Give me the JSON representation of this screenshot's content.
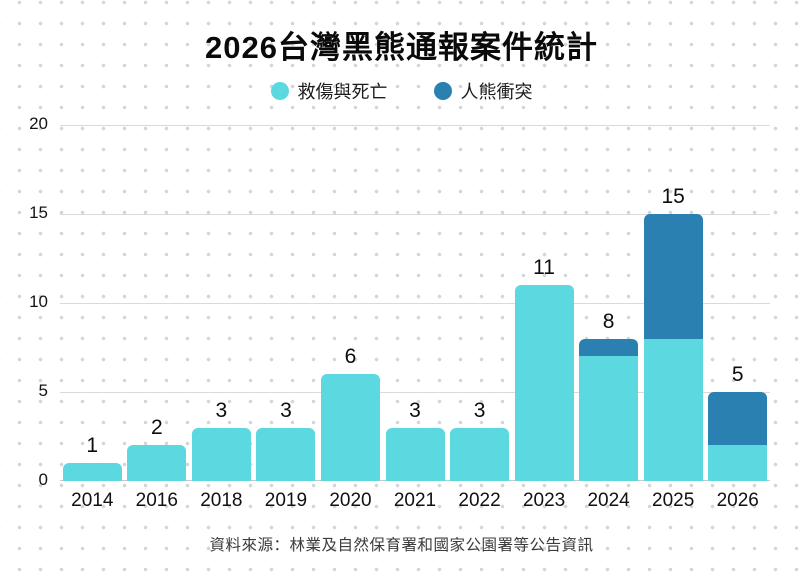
{
  "title": "2026台灣黑熊通報案件統計",
  "caption": "資料來源：林業及自然保育署和國家公園署等公告資訊",
  "legend": {
    "items": [
      {
        "label": "救傷與死亡",
        "color": "#5bd8e0"
      },
      {
        "label": "人熊衝突",
        "color": "#2b80b2"
      }
    ]
  },
  "colors": {
    "rescue_death": "#5bd8e0",
    "human_bear_conflict": "#2b80b2",
    "gridline": "#d9dadb",
    "baseline": "#c7c9cb",
    "dot_pattern": "#d4d6d8",
    "text": "#0a0a0a"
  },
  "chart_data": {
    "type": "bar",
    "stacked": true,
    "title": "2026台灣黑熊通報案件統計",
    "xlabel": "",
    "ylabel": "",
    "categories": [
      "2014",
      "2016",
      "2018",
      "2019",
      "2020",
      "2021",
      "2022",
      "2023",
      "2024",
      "2025",
      "2026"
    ],
    "series": [
      {
        "name": "救傷與死亡",
        "color": "#5bd8e0",
        "values": [
          1,
          2,
          3,
          3,
          6,
          3,
          3,
          11,
          7,
          8,
          2
        ]
      },
      {
        "name": "人熊衝突",
        "color": "#2b80b2",
        "values": [
          0,
          0,
          0,
          0,
          0,
          0,
          0,
          0,
          1,
          7,
          3
        ]
      }
    ],
    "totals": [
      1,
      2,
      3,
      3,
      6,
      3,
      3,
      11,
      8,
      15,
      5
    ],
    "y_ticks": [
      0,
      5,
      10,
      15,
      20
    ],
    "ylim": [
      0,
      20
    ],
    "grid": true,
    "legend_position": "top",
    "value_labels": "total-above-bar"
  }
}
